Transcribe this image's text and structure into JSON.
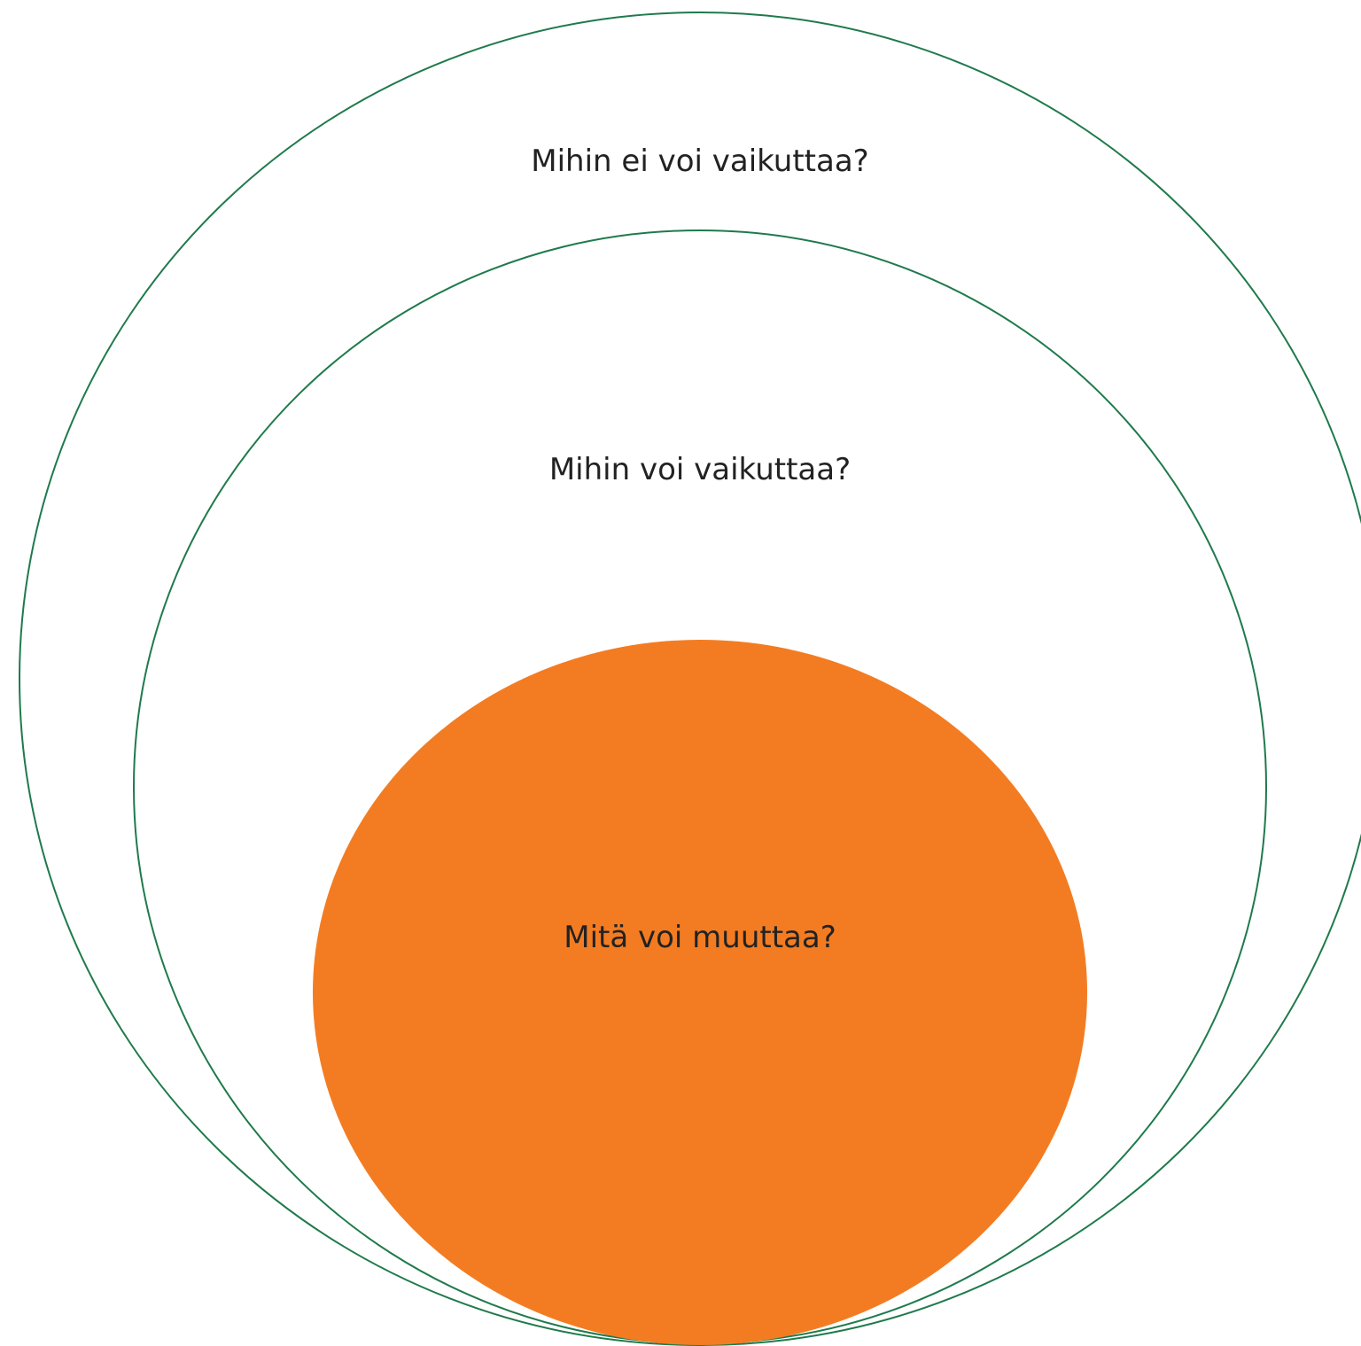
{
  "diagram": {
    "type": "nested-circles",
    "colors": {
      "outline": "#1f7a4c",
      "inner_fill": "#f37c22",
      "text": "#222222"
    },
    "outer_circle": {
      "label": "Mihin ei voi vaikuttaa?"
    },
    "middle_circle": {
      "label": "Mihin voi vaikuttaa?"
    },
    "inner_circle": {
      "label": "Mitä voi muuttaa?"
    }
  }
}
